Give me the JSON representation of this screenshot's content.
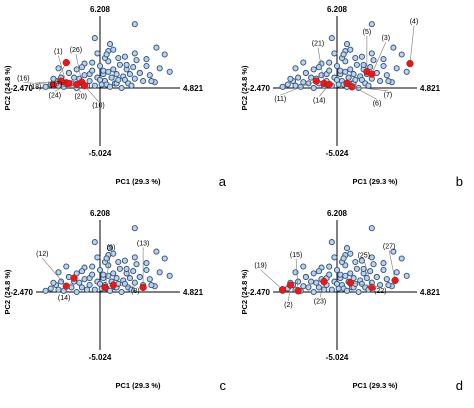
{
  "figure": {
    "panels": [
      {
        "panel_label": "a",
        "axis_ticks": {
          "y_top": "6.208",
          "y_bottom": "-5.024",
          "x_left": "-2.470",
          "x_right": "4.821"
        },
        "xlabel": "PC1 (29.3 %)",
        "ylabel": "PC2 (24.8 %)",
        "highlighted_labels": [
          "(1)",
          "(26)",
          "(16)",
          "(18)",
          "(24)",
          "(20)",
          "(10)",
          "(17)"
        ]
      },
      {
        "panel_label": "b",
        "axis_ticks": {
          "y_top": "6.208",
          "y_bottom": "-5.024",
          "x_left": "-2.470",
          "x_right": "4.821"
        },
        "xlabel": "PC1 (29.3 %)",
        "ylabel": "PC2 (24.8 %)",
        "highlighted_labels": [
          "(21)",
          "(5)",
          "(3)",
          "(4)",
          "(7)",
          "(6)",
          "(11)",
          "(14)"
        ]
      },
      {
        "panel_label": "c",
        "axis_ticks": {
          "y_top": "6.208",
          "y_bottom": "-5.024",
          "x_left": "-2.470",
          "x_right": "4.821"
        },
        "xlabel": "PC1 (29.3 %)",
        "ylabel": "PC2 (24.8 %)",
        "highlighted_labels": [
          "(12)",
          "(9)",
          "(13)",
          "(8)",
          "(14)"
        ]
      },
      {
        "panel_label": "d",
        "axis_ticks": {
          "y_top": "6.208",
          "y_bottom": "-5.024",
          "x_left": "-2.470",
          "x_right": "4.821"
        },
        "xlabel": "PC1 (29.3 %)",
        "ylabel": "PC2 (24.8 %)",
        "highlighted_labels": [
          "(15)",
          "(19)",
          "(25)",
          "(27)",
          "(22)",
          "(2)",
          "(23)"
        ]
      }
    ]
  },
  "chart_data": {
    "type": "scatter",
    "xlabel": "PC1 (29.3 %)",
    "ylabel": "PC2 (24.8 %)",
    "xlim": [
      -2.47,
      4.821
    ],
    "ylim": [
      -5.024,
      6.208
    ],
    "colors": {
      "background_points": "#bcd2ea",
      "background_edge": "#2f4f7a",
      "highlight": "#e01b1b"
    },
    "background_points": [
      [
        -1.9,
        0.3
      ],
      [
        -1.7,
        0.6
      ],
      [
        -1.6,
        -0.2
      ],
      [
        -1.5,
        0.9
      ],
      [
        -1.4,
        0.1
      ],
      [
        -1.3,
        -0.5
      ],
      [
        -1.2,
        1.3
      ],
      [
        -1.1,
        0.4
      ],
      [
        -1.0,
        -0.9
      ],
      [
        -0.9,
        1.6
      ],
      [
        -0.9,
        0.0
      ],
      [
        -0.8,
        0.8
      ],
      [
        -0.7,
        -0.4
      ],
      [
        -0.6,
        1.1
      ],
      [
        -0.6,
        2.1
      ],
      [
        -0.5,
        0.2
      ],
      [
        -0.4,
        -1.2
      ],
      [
        -0.4,
        0.6
      ],
      [
        -0.3,
        1.5
      ],
      [
        -0.2,
        -0.2
      ],
      [
        -0.1,
        0.9
      ],
      [
        0.0,
        1.9
      ],
      [
        0.0,
        -0.7
      ],
      [
        0.1,
        0.3
      ],
      [
        0.2,
        1.2
      ],
      [
        0.2,
        -1.5
      ],
      [
        0.3,
        0.6
      ],
      [
        0.4,
        -0.3
      ],
      [
        0.5,
        1.4
      ],
      [
        0.5,
        2.3
      ],
      [
        0.6,
        0.1
      ],
      [
        0.7,
        0.9
      ],
      [
        0.7,
        -0.9
      ],
      [
        0.8,
        1.6
      ],
      [
        0.9,
        0.4
      ],
      [
        1.0,
        -0.4
      ],
      [
        1.0,
        1.2
      ],
      [
        1.1,
        0.7
      ],
      [
        1.2,
        2.0
      ],
      [
        1.3,
        0.0
      ],
      [
        1.4,
        1.0
      ],
      [
        1.5,
        -0.7
      ],
      [
        1.6,
        1.6
      ],
      [
        1.7,
        0.4
      ],
      [
        1.8,
        1.2
      ],
      [
        1.9,
        -0.2
      ],
      [
        2.0,
        1.8
      ],
      [
        2.1,
        0.8
      ],
      [
        2.2,
        2.4
      ],
      [
        2.4,
        1.3
      ],
      [
        2.6,
        0.6
      ],
      [
        2.8,
        1.9
      ],
      [
        3.0,
        1.1
      ],
      [
        3.3,
        0.5
      ],
      [
        3.6,
        1.7
      ],
      [
        -1.8,
        -0.8
      ],
      [
        -1.2,
        -1.3
      ],
      [
        -0.7,
        -1.8
      ],
      [
        -0.3,
        -2.2
      ],
      [
        0.3,
        -2.6
      ],
      [
        0.5,
        -3.2
      ],
      [
        0.6,
        -3.8
      ],
      [
        1.6,
        -2.0
      ],
      [
        2.1,
        -3.0
      ],
      [
        2.8,
        -2.5
      ],
      [
        3.4,
        -3.5
      ],
      [
        4.2,
        -1.4
      ],
      [
        3.9,
        -2.9
      ],
      [
        -0.2,
        4.3
      ],
      [
        0.8,
        3.3
      ],
      [
        2.1,
        5.5
      ],
      [
        1.1,
        -2.6
      ],
      [
        -2.1,
        -0.1
      ],
      [
        -1.6,
        1.7
      ],
      [
        -0.1,
        -3.0
      ],
      [
        0.4,
        2.9
      ],
      [
        1.5,
        2.7
      ],
      [
        2.4,
        -1.3
      ],
      [
        3.1,
        -0.6
      ],
      [
        -1.3,
        2.2
      ]
    ],
    "highlighted": [
      [
        {
          "label": "(1)",
          "x": -1.3,
          "y": 0.4
        },
        {
          "label": "(26)",
          "x": -0.7,
          "y": 0.5
        },
        {
          "label": "(16)",
          "x": -1.8,
          "y": -0.3
        },
        {
          "label": "(18)",
          "x": -1.5,
          "y": -0.6
        },
        {
          "label": "(24)",
          "x": -1.2,
          "y": -0.4
        },
        {
          "label": "(20)",
          "x": -0.9,
          "y": -0.3
        },
        {
          "label": "(10)",
          "x": -0.6,
          "y": -0.2
        },
        {
          "label": "(17)",
          "x": -1.3,
          "y": -2.2
        }
      ],
      [
        {
          "label": "(21)",
          "x": -0.5,
          "y": 0.4
        },
        {
          "label": "(5)",
          "x": 1.8,
          "y": 1.4
        },
        {
          "label": "(3)",
          "x": 2.1,
          "y": 1.2
        },
        {
          "label": "(4)",
          "x": 4.4,
          "y": 2.1
        },
        {
          "label": "(7)",
          "x": 0.9,
          "y": -0.1
        },
        {
          "label": "(6)",
          "x": 0.6,
          "y": -0.4
        },
        {
          "label": "(11)",
          "x": -0.8,
          "y": -0.6
        },
        {
          "label": "(14)",
          "x": -0.3,
          "y": -0.3
        }
      ],
      [
        {
          "label": "(12)",
          "x": -1.3,
          "y": 0.5
        },
        {
          "label": "(9)",
          "x": 0.3,
          "y": -0.4
        },
        {
          "label": "(13)",
          "x": 2.6,
          "y": 0.4
        },
        {
          "label": "(8)",
          "x": 0.8,
          "y": -0.6
        },
        {
          "label": "(14)",
          "x": -1.0,
          "y": -1.2
        }
      ],
      [
        {
          "label": "(15)",
          "x": -1.5,
          "y": -0.1
        },
        {
          "label": "(19)",
          "x": -2.1,
          "y": -0.2
        },
        {
          "label": "(25)",
          "x": 2.1,
          "y": 0.4
        },
        {
          "label": "(27)",
          "x": 3.5,
          "y": 1.0
        },
        {
          "label": "(22)",
          "x": 0.8,
          "y": -0.8
        },
        {
          "label": "(2)",
          "x": -1.8,
          "y": -0.6
        },
        {
          "label": "(23)",
          "x": -0.5,
          "y": -0.9
        }
      ]
    ],
    "grid": false,
    "legend": "none"
  }
}
